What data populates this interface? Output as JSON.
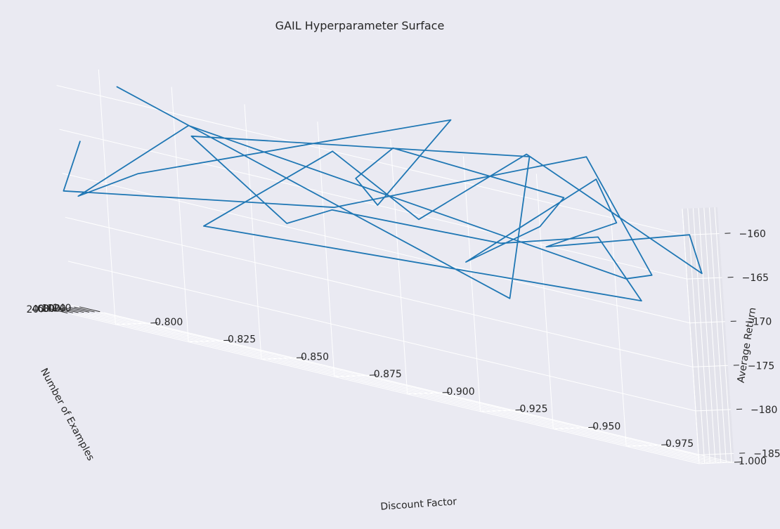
{
  "chart_data": {
    "type": "line",
    "title": "GAIL Hyperparameter Surface",
    "xlabel": "Discount Factor",
    "ylabel": "Number of Examples",
    "zlabel": "Average Return",
    "xlim": [
      0.785,
      1.0
    ],
    "ylim": [
      20,
      150
    ],
    "zlim": [
      -186,
      -157
    ],
    "x_ticks": [
      "0.800",
      "0.825",
      "0.850",
      "0.875",
      "0.900",
      "0.925",
      "0.950",
      "0.975",
      "1.000"
    ],
    "y_ticks": [
      "20",
      "40",
      "60",
      "80",
      "100",
      "120",
      "140"
    ],
    "z_ticks": [
      "−160",
      "−165",
      "−170",
      "−175",
      "−180",
      "−185"
    ],
    "x_tick_values": [
      0.8,
      0.825,
      0.85,
      0.875,
      0.9,
      0.925,
      0.95,
      0.975,
      1.0
    ],
    "y_tick_values": [
      20,
      40,
      60,
      80,
      100,
      120,
      140
    ],
    "z_tick_values": [
      -160,
      -165,
      -170,
      -175,
      -180,
      -185
    ],
    "grid": true,
    "colors": {
      "line": "#1f77b4",
      "background": "#eaeaf2",
      "pane": "#eaeaf2",
      "grid": "#ffffff"
    },
    "series": [
      {
        "x": [
          0.79,
          0.785,
          0.875,
          0.964,
          0.986,
          0.975,
          0.83,
          0.79,
          0.8,
          0.912,
          0.894,
          0.887,
          0.895,
          0.959,
          0.95,
          0.914,
          0.965,
          0.973,
          0.948,
          1.0,
          0.994,
          0.947,
          0.908,
          0.872,
          0.833,
          0.978,
          0.97,
          0.936,
          0.878,
          0.862,
          0.827,
          0.948,
          0.936,
          0.806
        ],
        "y": [
          40,
          20,
          60,
          60,
          40,
          60,
          20,
          20,
          140,
          120,
          20,
          20,
          80,
          20,
          20,
          120,
          80,
          60,
          60,
          40,
          140,
          20,
          20,
          100,
          20,
          80,
          20,
          20,
          20,
          20,
          60,
          20,
          40,
          20
        ],
        "z": [
          -166,
          -172,
          -166.8,
          -154,
          -165.7,
          -167,
          -161,
          -172.2,
          -169,
          -154,
          -165,
          -162.5,
          -158.5,
          -159,
          -163,
          -170,
          -156.5,
          -160.8,
          -165.5,
          -160,
          -165,
          -155,
          -165.5,
          -160.7,
          -172.2,
          -169.3,
          -162.6,
          -166,
          -166.8,
          -169.6,
          -162.5,
          -155.2,
          -172.3,
          -158.5
        ]
      }
    ]
  }
}
